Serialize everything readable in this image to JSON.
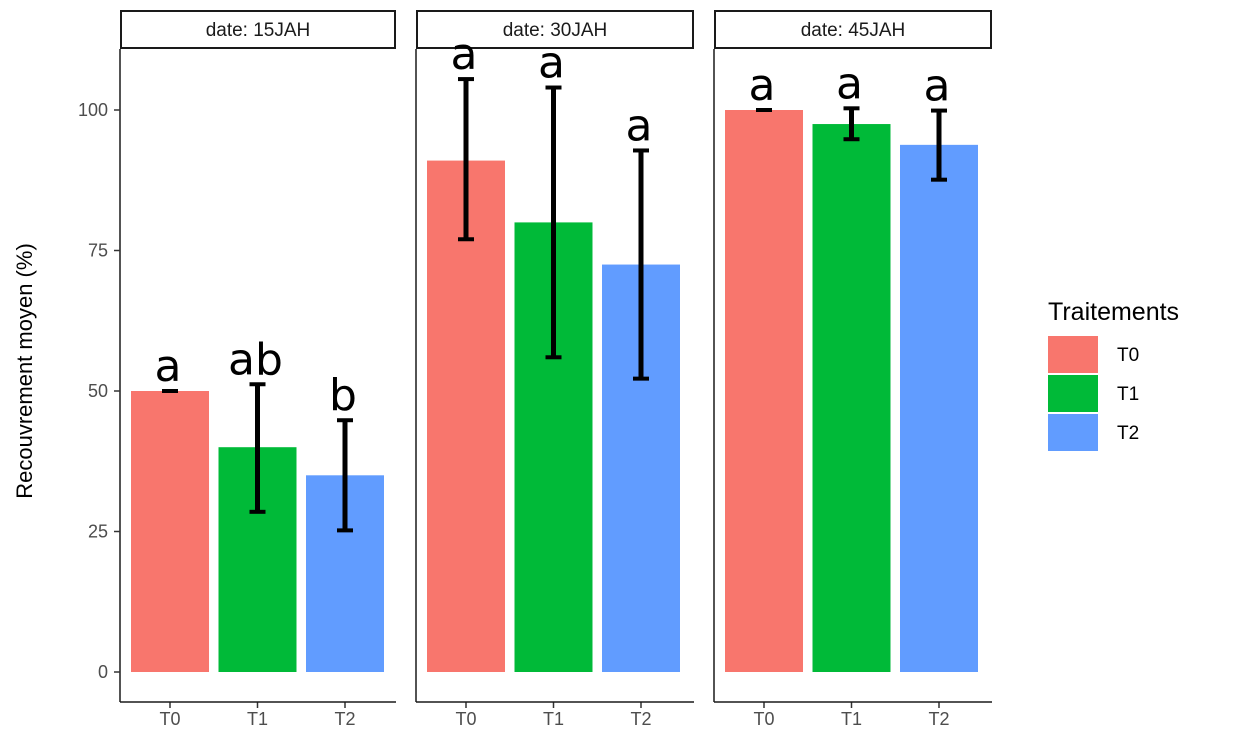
{
  "chart_data": {
    "type": "bar",
    "ylabel": "Recouvrement moyen (%)",
    "ylim": [
      0,
      110
    ],
    "yticks": [
      0,
      25,
      50,
      75,
      100
    ],
    "grid": false,
    "legend_placement": "right",
    "legend": {
      "title": "Traitements",
      "items": [
        {
          "label": "T0",
          "color": "#F8766D"
        },
        {
          "label": "T1",
          "color": "#00BA38"
        },
        {
          "label": "T2",
          "color": "#619CFF"
        }
      ]
    },
    "categories": [
      "T0",
      "T1",
      "T2"
    ],
    "facets": [
      {
        "strip": "date: 15JAH",
        "values": [
          50,
          40,
          35
        ],
        "error_low": [
          50,
          28.5,
          25.2
        ],
        "error_high": [
          50,
          51.2,
          44.8
        ],
        "labels": [
          "a",
          "ab",
          "b"
        ]
      },
      {
        "strip": "date: 30JAH",
        "values": [
          91,
          80,
          72.5
        ],
        "error_low": [
          77,
          56,
          52.2
        ],
        "error_high": [
          105.5,
          104,
          92.8
        ],
        "labels": [
          "a",
          "a",
          "a"
        ]
      },
      {
        "strip": "date: 45JAH",
        "values": [
          100,
          97.5,
          93.8
        ],
        "error_low": [
          100,
          94.8,
          87.6
        ],
        "error_high": [
          100,
          100.3,
          99.9
        ],
        "labels": [
          "a",
          "a",
          "a"
        ]
      }
    ]
  }
}
